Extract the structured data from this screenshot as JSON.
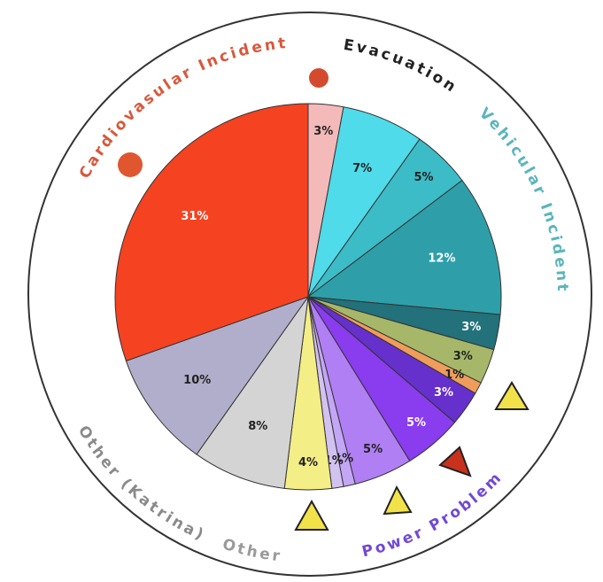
{
  "chart_data": {
    "type": "pie",
    "values": [
      3,
      7,
      5,
      12,
      3,
      3,
      1,
      3,
      5,
      5,
      1,
      1,
      4,
      8,
      10,
      31
    ],
    "value_labels": [
      "3%",
      "7%",
      "5%",
      "12%",
      "3%",
      "3%",
      "1%",
      "3%",
      "5%",
      "5%",
      "1%",
      "1%",
      "4%",
      "8%",
      "10%",
      "31%"
    ],
    "colors": [
      "#f4b9b9",
      "#4fdbe9",
      "#3cbcc7",
      "#2e9fa9",
      "#22717b",
      "#a6b769",
      "#f09d5c",
      "#6530cc",
      "#8a3cef",
      "#b07ff4",
      "#c4a6f6",
      "#d2c2f0",
      "#f4ee86",
      "#d4d4d4",
      "#b1aecb",
      "#f54221"
    ],
    "ring_labels": [
      {
        "text": "Cardiovasular Incident",
        "color": "#d9573b"
      },
      {
        "text": "Evacuation",
        "color": "#222222"
      },
      {
        "text": "Vehicular Incident",
        "color": "#5bb5bd"
      },
      {
        "text": "Power Problem",
        "color": "#7048d6"
      },
      {
        "text": "Other",
        "color": "#9a9a9a"
      },
      {
        "text": "Other (Katrina)",
        "color": "#8a8a8a"
      }
    ]
  }
}
